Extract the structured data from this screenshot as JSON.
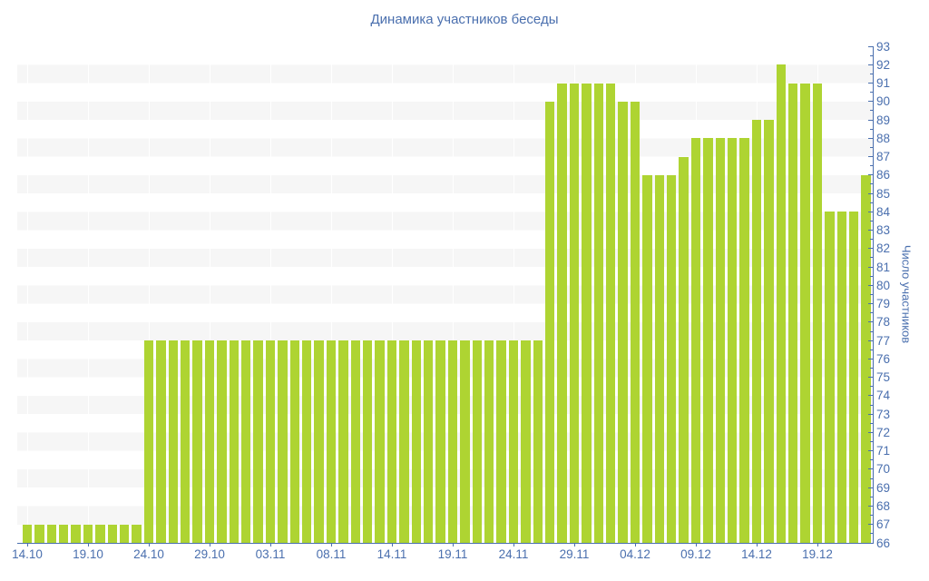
{
  "chart": {
    "title": "Динамика участников беседы",
    "ylabel": "Число участников"
  },
  "chart_data": {
    "type": "bar",
    "title": "Динамика участников беседы",
    "xlabel": "",
    "ylabel": "Число участников",
    "ylim": [
      66,
      93
    ],
    "y_ticks": [
      66,
      67,
      68,
      69,
      70,
      71,
      72,
      73,
      74,
      75,
      76,
      77,
      78,
      79,
      80,
      81,
      82,
      83,
      84,
      85,
      86,
      87,
      88,
      89,
      90,
      91,
      92,
      93
    ],
    "y_minor_tick_step": 0.5,
    "grid": "alternating-horizontal-stripes",
    "legend": "none",
    "x_tick_labels": [
      "14.10",
      "19.10",
      "24.10",
      "29.10",
      "03.11",
      "08.11",
      "14.11",
      "19.11",
      "24.11",
      "29.11",
      "04.12",
      "09.12",
      "14.12",
      "19.12"
    ],
    "x_tick_indices": [
      0,
      5,
      10,
      15,
      20,
      25,
      30,
      35,
      40,
      45,
      50,
      55,
      60,
      65
    ],
    "values": [
      67,
      67,
      67,
      67,
      67,
      67,
      67,
      67,
      67,
      67,
      77,
      77,
      77,
      77,
      77,
      77,
      77,
      77,
      77,
      77,
      77,
      77,
      77,
      77,
      77,
      77,
      77,
      77,
      77,
      77,
      77,
      77,
      77,
      77,
      77,
      77,
      77,
      77,
      77,
      77,
      77,
      77,
      77,
      90,
      91,
      91,
      91,
      91,
      91,
      90,
      90,
      86,
      86,
      86,
      87,
      88,
      88,
      88,
      88,
      88,
      89,
      89,
      92,
      91,
      91,
      91,
      84,
      84,
      84,
      86
    ],
    "colors": {
      "bar": "#aed432",
      "axis": "#4a6fae",
      "text": "#4a6fae",
      "stripe": "#f6f6f6",
      "background": "#ffffff"
    }
  }
}
